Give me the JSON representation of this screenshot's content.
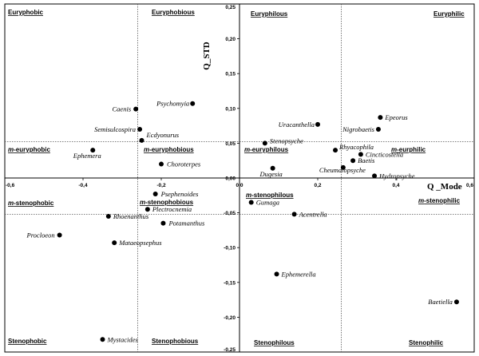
{
  "chart_data": {
    "type": "scatter",
    "title": "",
    "xlabel": "Q _Mode",
    "ylabel": "Q_STD",
    "xlim": [
      -0.6,
      0.6
    ],
    "ylim": [
      -0.25,
      0.25
    ],
    "x_ticks": [
      "-0,6",
      "-0,4",
      "-0,2",
      "0,0",
      "0,2",
      "0,4",
      "0,6"
    ],
    "y_ticks": [
      "0,25",
      "0,20",
      "0,15",
      "0,10",
      "0,05",
      "0,00",
      "-0,05",
      "-0,10",
      "-0,15",
      "-0,20",
      "-0,25"
    ],
    "reference_lines": {
      "x": [
        -0.26,
        0.26
      ],
      "y": [
        0.052,
        -0.052
      ]
    },
    "points": [
      {
        "label": "Caenis",
        "x": -0.265,
        "y": 0.099
      },
      {
        "label": "Psychomyia",
        "x": -0.12,
        "y": 0.107
      },
      {
        "label": "Semisulcospira",
        "x": -0.255,
        "y": 0.07
      },
      {
        "label": "Ecdyonurus",
        "x": -0.25,
        "y": 0.054
      },
      {
        "label": "Ephemera",
        "x": -0.375,
        "y": 0.04
      },
      {
        "label": "Choroterpes",
        "x": -0.2,
        "y": 0.02
      },
      {
        "label": "Psephenoides",
        "x": -0.215,
        "y": -0.023
      },
      {
        "label": "Plectrocnemia",
        "x": -0.235,
        "y": -0.045
      },
      {
        "label": "Rhoenanthus",
        "x": -0.335,
        "y": -0.055
      },
      {
        "label": "Potamanthus",
        "x": -0.195,
        "y": -0.065
      },
      {
        "label": "Procloeon",
        "x": -0.46,
        "y": -0.082
      },
      {
        "label": "Mataeopsephus",
        "x": -0.32,
        "y": -0.093
      },
      {
        "label": "Mystacides",
        "x": -0.35,
        "y": -0.232
      },
      {
        "label": "Epeorus",
        "x": 0.36,
        "y": 0.087
      },
      {
        "label": "Uracanthella",
        "x": 0.2,
        "y": 0.077
      },
      {
        "label": "Nigrobaetis",
        "x": 0.355,
        "y": 0.07
      },
      {
        "label": "Stenopsyche",
        "x": 0.065,
        "y": 0.05
      },
      {
        "label": "Rhyacophila",
        "x": 0.245,
        "y": 0.04
      },
      {
        "label": "Cincticostella",
        "x": 0.31,
        "y": 0.034
      },
      {
        "label": "Baetis",
        "x": 0.29,
        "y": 0.025
      },
      {
        "label": "Dugesia",
        "x": 0.085,
        "y": 0.014
      },
      {
        "label": "Cheumatopsyche",
        "x": 0.265,
        "y": 0.015
      },
      {
        "label": "Hydropsyche",
        "x": 0.345,
        "y": 0.003
      },
      {
        "label": "Gumaga",
        "x": 0.03,
        "y": -0.035
      },
      {
        "label": "Acentrella",
        "x": 0.14,
        "y": -0.052
      },
      {
        "label": "Ephemerella",
        "x": 0.095,
        "y": -0.138
      },
      {
        "label": "Baetiella",
        "x": 0.555,
        "y": -0.178
      }
    ],
    "region_labels": {
      "euryphobic": "Euryphobic",
      "euryphobious": "Euryphobious",
      "euryphilous": "Euryphilous",
      "euryphilic": "Euryphilic",
      "m_euryphobic": "-euryphobic",
      "m_euryphobious": "-euryphobious",
      "m_euryphilous": "-euryphilous",
      "m_eurphilic": "-eurphilic",
      "m_stenophobic": "-stenophobic",
      "m_stenophobious": "-stenophobious",
      "m_stenophilous": "-stenophilous",
      "m_stenophilic": "-stenophilic",
      "stenophobic": "Stenophobic",
      "stenophobious": "Stenophobious",
      "stenophilous": "Stenophilous",
      "stenophilic": "Stenophilic",
      "m_prefix": "m"
    }
  }
}
